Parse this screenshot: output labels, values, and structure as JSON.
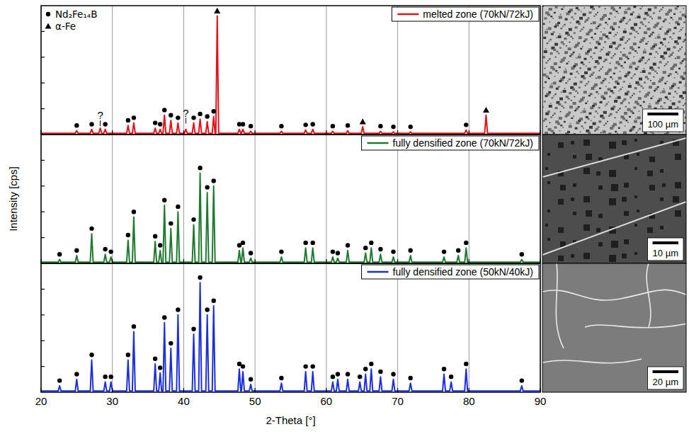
{
  "chart_data": [
    {
      "type": "line",
      "xlim": [
        20,
        90
      ],
      "ylim": [
        0,
        100
      ],
      "xticks": [
        20,
        30,
        40,
        50,
        60,
        70,
        80,
        90
      ],
      "yticks": [
        0,
        20,
        40,
        60,
        80,
        100
      ],
      "grid": "x",
      "tick_labels": false,
      "legend": "upper right",
      "x": [
        20,
        24.8,
        25.0,
        25.2,
        26.9,
        27.1,
        27.3,
        28.1,
        28.3,
        28.5,
        28.8,
        29.0,
        29.2,
        32.0,
        32.2,
        32.4,
        32.8,
        33.0,
        33.2,
        35.8,
        36.0,
        36.2,
        36.5,
        36.7,
        36.9,
        37.1,
        37.3,
        37.5,
        38.0,
        38.2,
        38.4,
        39.0,
        39.2,
        39.4,
        40.1,
        40.3,
        40.5,
        41.2,
        41.4,
        41.6,
        42.1,
        42.3,
        42.5,
        43.1,
        43.3,
        43.5,
        44.0,
        44.2,
        44.4,
        44.5,
        44.7,
        44.9,
        47.6,
        47.8,
        48.0,
        48.1,
        48.3,
        48.5,
        49.2,
        49.4,
        49.6,
        53.5,
        53.7,
        53.9,
        56.9,
        57.1,
        57.3,
        57.9,
        58.1,
        58.3,
        60.7,
        60.9,
        61.1,
        62.8,
        63.0,
        63.2,
        64.9,
        65.1,
        65.3,
        67.4,
        67.6,
        67.8,
        69.2,
        69.4,
        69.6,
        71.6,
        71.8,
        72.0,
        79.4,
        79.6,
        79.8,
        82.2,
        82.4,
        82.6,
        90
      ],
      "series": [
        {
          "name": "melted zone (70kN/72kJ)",
          "color": "#e3131b",
          "values": [
            1,
            1,
            3,
            1,
            1,
            4,
            1,
            1,
            5,
            1,
            1,
            4,
            1,
            1,
            7,
            1,
            1,
            9,
            1,
            1,
            5,
            1,
            1,
            4,
            1,
            1,
            15,
            1,
            1,
            11,
            1,
            1,
            9,
            1,
            1,
            4,
            1,
            1,
            9,
            1,
            1,
            12,
            1,
            1,
            10,
            1,
            1,
            14,
            1,
            1,
            92,
            1,
            1,
            4,
            1,
            1,
            4,
            1,
            1,
            2.5,
            1,
            1,
            2.5,
            1,
            1,
            3.5,
            1,
            1,
            4,
            1,
            1,
            2.5,
            1,
            1,
            3,
            1,
            1,
            6,
            1,
            1,
            2.5,
            1,
            1,
            2,
            1,
            1,
            2,
            1,
            1,
            3.5,
            1,
            1,
            15,
            1,
            1
          ]
        }
      ],
      "markers": [
        {
          "name": "Nd₂Fe₁₄B",
          "marker": "circle",
          "x": [
            25,
            27.1,
            29,
            32.2,
            33,
            36,
            36.7,
            37.3,
            38.2,
            39.2,
            41.4,
            42.3,
            43.3,
            44.2,
            47.8,
            48.3,
            49.4,
            53.7,
            57.1,
            58.1,
            60.9,
            63,
            67.6,
            69.4,
            71.8,
            79.6
          ],
          "y": [
            7,
            8,
            8,
            11,
            13,
            9,
            8,
            19,
            15,
            13,
            13,
            16,
            14,
            18,
            8,
            8,
            6.5,
            6.5,
            7.5,
            8,
            6.5,
            7,
            6.5,
            6,
            6,
            7.5
          ]
        },
        {
          "name": "α-Fe",
          "marker": "triangle",
          "x": [
            44.7,
            65.1,
            82.4
          ],
          "y": [
            96,
            10,
            19
          ]
        }
      ],
      "annotations": [
        {
          "text": "?",
          "x": 28.3,
          "y": 12
        },
        {
          "text": "?",
          "x": 40.3,
          "y": 14
        }
      ],
      "image": {
        "scale_bar": "100 µm"
      }
    },
    {
      "type": "line",
      "xlim": [
        20,
        90
      ],
      "ylim": [
        0,
        100
      ],
      "xticks": [
        20,
        30,
        40,
        50,
        60,
        70,
        80,
        90
      ],
      "yticks": [
        0,
        20,
        40,
        60,
        80,
        100
      ],
      "grid": "x",
      "tick_labels": false,
      "legend": "upper right",
      "ylabel": "Intensity [cps]",
      "x": [
        20,
        22.4,
        22.6,
        22.8,
        24.8,
        25.0,
        25.2,
        26.9,
        27.1,
        27.3,
        28.8,
        29.0,
        29.2,
        29.6,
        29.8,
        30.0,
        32.0,
        32.2,
        32.4,
        32.8,
        33.0,
        33.2,
        35.8,
        36.0,
        36.2,
        36.5,
        36.7,
        36.9,
        37.1,
        37.3,
        37.5,
        38.0,
        38.2,
        38.4,
        39.0,
        39.2,
        39.4,
        41.2,
        41.4,
        41.6,
        42.1,
        42.3,
        42.5,
        43.1,
        43.3,
        43.5,
        44.0,
        44.2,
        44.4,
        47.6,
        47.8,
        48.0,
        48.1,
        48.3,
        48.5,
        49.2,
        49.4,
        49.6,
        53.5,
        53.7,
        53.9,
        56.9,
        57.1,
        57.3,
        57.9,
        58.1,
        58.3,
        60.7,
        60.9,
        61.1,
        61.4,
        61.6,
        61.8,
        62.8,
        63.0,
        63.2,
        65.3,
        65.5,
        65.7,
        66.1,
        66.3,
        66.5,
        67.4,
        67.6,
        67.8,
        69.2,
        69.4,
        69.6,
        71.6,
        71.8,
        72.0,
        76.3,
        76.5,
        76.7,
        78.3,
        78.5,
        78.7,
        79.4,
        79.6,
        79.8,
        87.2,
        87.4,
        87.6,
        90
      ],
      "series": [
        {
          "name": "fully densified zone (70kN/72kJ)",
          "color": "#1f7a30",
          "values": [
            1,
            1,
            3,
            1,
            1,
            6,
            1,
            1,
            23,
            1,
            1,
            7,
            1,
            1,
            5,
            1,
            1,
            18,
            1,
            1,
            36,
            1,
            1,
            17,
            1,
            1,
            10,
            1,
            1,
            45,
            1,
            1,
            27,
            1,
            1,
            40,
            1,
            1,
            30,
            1,
            1,
            70,
            1,
            1,
            55,
            1,
            1,
            60,
            1,
            1,
            10,
            1,
            1,
            12,
            1,
            1,
            4,
            1,
            1,
            5,
            1,
            1,
            12,
            1,
            1,
            12,
            1,
            1,
            5,
            1,
            1,
            4,
            1,
            1,
            10,
            1,
            1,
            8,
            1,
            1,
            12,
            1,
            1,
            7,
            1,
            1,
            5,
            1,
            1,
            6,
            1,
            1,
            5,
            1,
            1,
            6,
            1,
            1,
            12,
            1,
            1,
            3,
            1,
            1
          ]
        }
      ],
      "markers": [
        {
          "name": "Nd₂Fe₁₄B",
          "marker": "circle",
          "x": [
            22.6,
            25,
            27.1,
            29,
            29.8,
            32.2,
            33,
            36,
            36.7,
            37.3,
            38.2,
            39.2,
            41.4,
            42.3,
            43.3,
            44.2,
            47.8,
            48.3,
            49.4,
            53.7,
            57.1,
            58.1,
            60.9,
            61.6,
            63,
            65.5,
            66.3,
            67.6,
            69.4,
            71.8,
            76.5,
            78.5,
            79.6,
            87.4
          ],
          "y": [
            7,
            10,
            27,
            11,
            9,
            22,
            40,
            21,
            14,
            49,
            31,
            44,
            34,
            74,
            59,
            64,
            14,
            16,
            8,
            9,
            16,
            16,
            9,
            8,
            14,
            12,
            16,
            11,
            9,
            10,
            9,
            10,
            16,
            7
          ]
        }
      ],
      "image": {
        "scale_bar": "10 µm"
      }
    },
    {
      "type": "line",
      "xlim": [
        20,
        90
      ],
      "ylim": [
        0,
        100
      ],
      "xticks": [
        20,
        30,
        40,
        50,
        60,
        70,
        80,
        90
      ],
      "yticks": [
        0,
        20,
        40,
        60,
        80,
        100
      ],
      "grid": "x",
      "tick_labels": "x",
      "legend": "upper right",
      "xlabel": "2-Theta [°]",
      "x": [
        20,
        22.4,
        22.6,
        22.8,
        24.8,
        25.0,
        25.2,
        26.9,
        27.1,
        27.3,
        28.8,
        29.0,
        29.2,
        29.6,
        29.8,
        30.0,
        32.0,
        32.2,
        32.4,
        32.8,
        33.0,
        33.2,
        35.8,
        36.0,
        36.2,
        36.5,
        36.7,
        36.9,
        37.1,
        37.3,
        37.5,
        38.0,
        38.2,
        38.4,
        39.0,
        39.2,
        39.4,
        41.2,
        41.4,
        41.6,
        42.1,
        42.3,
        42.5,
        43.1,
        43.3,
        43.5,
        44.0,
        44.2,
        44.4,
        47.6,
        47.8,
        48.0,
        48.1,
        48.3,
        48.5,
        49.2,
        49.4,
        49.6,
        53.5,
        53.7,
        53.9,
        56.9,
        57.1,
        57.3,
        57.9,
        58.1,
        58.3,
        60.7,
        60.9,
        61.1,
        61.4,
        61.6,
        61.8,
        62.8,
        63.0,
        63.2,
        64.5,
        64.7,
        64.9,
        65.3,
        65.5,
        65.7,
        66.1,
        66.3,
        66.5,
        67.4,
        67.6,
        67.8,
        69.2,
        69.4,
        69.6,
        71.6,
        71.8,
        72.0,
        76.3,
        76.5,
        76.7,
        77.3,
        77.5,
        77.7,
        79.4,
        79.6,
        79.8,
        87.2,
        87.4,
        87.6,
        90
      ],
      "series": [
        {
          "name": "fully densified zone (50kN/40kJ)",
          "color": "#1c2fd8",
          "values": [
            1,
            1,
            5,
            1,
            1,
            10,
            1,
            1,
            25,
            1,
            1,
            8,
            1,
            1,
            8,
            1,
            1,
            25,
            1,
            1,
            47,
            1,
            1,
            22,
            1,
            1,
            15,
            1,
            1,
            54,
            1,
            1,
            34,
            1,
            1,
            60,
            1,
            1,
            45,
            1,
            1,
            85,
            1,
            1,
            60,
            1,
            1,
            67,
            1,
            1,
            18,
            1,
            1,
            16,
            1,
            1,
            6,
            1,
            1,
            7,
            1,
            1,
            16,
            1,
            1,
            16,
            1,
            1,
            8,
            1,
            1,
            10,
            1,
            1,
            10,
            1,
            1,
            8,
            1,
            1,
            14,
            1,
            1,
            18,
            1,
            1,
            12,
            1,
            1,
            10,
            1,
            1,
            7,
            1,
            1,
            14,
            1,
            1,
            8,
            1,
            1,
            18,
            1,
            1,
            5,
            1,
            1
          ]
        }
      ],
      "markers": [
        {
          "name": "Nd₂Fe₁₄B",
          "marker": "circle",
          "x": [
            22.6,
            25,
            27.1,
            29,
            29.8,
            32.2,
            33,
            36,
            36.7,
            37.3,
            38.2,
            39.2,
            41.4,
            42.3,
            43.3,
            44.2,
            47.8,
            48.3,
            49.4,
            53.7,
            57.1,
            58.1,
            60.9,
            61.6,
            63,
            64.7,
            65.5,
            66.3,
            67.6,
            69.4,
            71.8,
            76.5,
            77.5,
            79.6,
            87.4
          ],
          "y": [
            9,
            14,
            29,
            12,
            12,
            29,
            51,
            26,
            19,
            58,
            38,
            64,
            49,
            89,
            64,
            71,
            22,
            20,
            10,
            11,
            20,
            20,
            12,
            14,
            14,
            12,
            18,
            22,
            16,
            14,
            11,
            18,
            12,
            22,
            9
          ]
        }
      ],
      "image": {
        "scale_bar": "20 µm"
      }
    }
  ]
}
